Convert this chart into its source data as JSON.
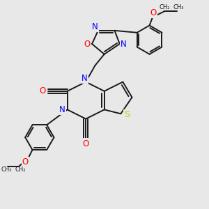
{
  "bg_color": "#e8e8e8",
  "bond_color": "#1a1a1a",
  "N_color": "#0000ff",
  "O_color": "#ff0000",
  "S_color": "#cccc00",
  "lw": 1.4,
  "fs": 8.5,
  "xlim": [
    0,
    10
  ],
  "ylim": [
    0,
    10
  ]
}
